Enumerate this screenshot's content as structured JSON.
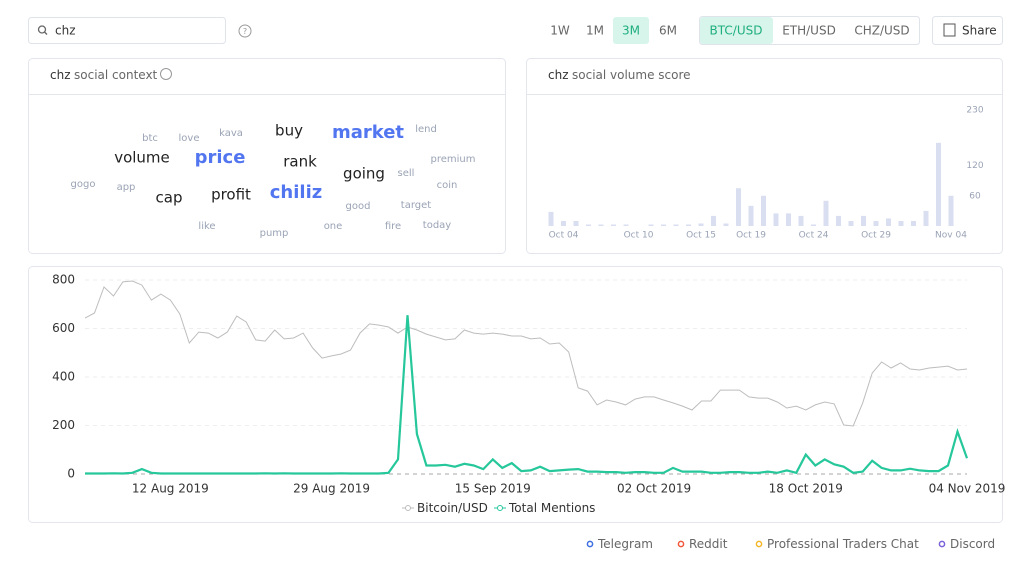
{
  "header": {
    "search": "chz",
    "periods": [
      "1W",
      "1M",
      "3M",
      "6M"
    ],
    "active_period": "3M",
    "pairs": [
      "BTC/USD",
      "ETH/USD",
      "CHZ/USD"
    ],
    "active_pair": "BTC/USD",
    "share": "Share"
  },
  "social_context": {
    "keyword": "chz",
    "title": "social context",
    "words": [
      "btc",
      "love",
      "kava",
      "buy",
      "market",
      "lend",
      "volume",
      "price",
      "rank",
      "premium",
      "gogo",
      "app",
      "going",
      "sell",
      "coin",
      "cap",
      "profit",
      "chiliz",
      "good",
      "target",
      "like",
      "pump",
      "one",
      "fire",
      "today"
    ]
  },
  "chart_data": [
    {
      "type": "bar",
      "keyword": "chz",
      "title": "social volume score",
      "color": "#d9dff0",
      "categories": [
        null,
        "Oct 04",
        null,
        null,
        null,
        null,
        null,
        "Oct 10",
        null,
        null,
        null,
        null,
        "Oct 15",
        null,
        null,
        null,
        "Oct 19",
        null,
        null,
        null,
        null,
        "Oct 24",
        null,
        null,
        null,
        null,
        "Oct 29",
        null,
        null,
        null,
        null,
        null,
        "Nov 04"
      ],
      "values": [
        28,
        10,
        10,
        3,
        3,
        3,
        3,
        0,
        3,
        3,
        3,
        3,
        5,
        20,
        5,
        75,
        40,
        60,
        25,
        25,
        20,
        3,
        50,
        20,
        10,
        20,
        10,
        15,
        10,
        10,
        30,
        165,
        60
      ],
      "ylim": [
        0,
        250
      ],
      "yticks": [
        60,
        120,
        230
      ]
    },
    {
      "type": "line",
      "ylim": [
        0,
        800
      ],
      "yticks": [
        0,
        200,
        400,
        600,
        800
      ],
      "grid": true,
      "categories": [
        null,
        null,
        null,
        null,
        null,
        null,
        null,
        null,
        null,
        "12 Aug 2019",
        null,
        null,
        null,
        null,
        null,
        null,
        null,
        null,
        null,
        null,
        null,
        null,
        null,
        null,
        null,
        null,
        "29 Aug 2019",
        null,
        null,
        null,
        null,
        null,
        null,
        null,
        null,
        null,
        null,
        null,
        null,
        null,
        null,
        null,
        null,
        "15 Sep 2019",
        null,
        null,
        null,
        null,
        null,
        null,
        null,
        null,
        null,
        null,
        null,
        null,
        null,
        null,
        null,
        null,
        "02 Oct 2019",
        null,
        null,
        null,
        null,
        null,
        null,
        null,
        null,
        null,
        null,
        null,
        null,
        null,
        null,
        null,
        "18 Oct 2019",
        null,
        null,
        null,
        null,
        null,
        null,
        null,
        null,
        null,
        null,
        null,
        null,
        null,
        null,
        null,
        null,
        "04 Nov 2019"
      ],
      "series": [
        {
          "name": "Bitcoin/USD",
          "color": "#bdbdbd",
          "values": [
            643,
            664,
            771,
            734,
            792,
            796,
            779,
            717,
            742,
            717,
            660,
            540,
            585,
            581,
            561,
            585,
            651,
            627,
            553,
            548,
            594,
            557,
            561,
            581,
            520,
            478,
            487,
            495,
            511,
            581,
            619,
            614,
            606,
            581,
            606,
            594,
            577,
            565,
            553,
            557,
            594,
            581,
            577,
            581,
            577,
            569,
            569,
            557,
            561,
            536,
            540,
            503,
            355,
            342,
            285,
            305,
            297,
            285,
            309,
            318,
            318,
            305,
            293,
            280,
            264,
            301,
            301,
            346,
            346,
            346,
            318,
            313,
            313,
            297,
            272,
            280,
            264,
            285,
            297,
            289,
            202,
            198,
            293,
            416,
            462,
            437,
            458,
            433,
            429,
            437,
            441,
            445,
            429,
            433
          ]
        },
        {
          "name": "Total Mentions",
          "color": "#26c79b",
          "values": [
            2,
            2,
            2,
            3,
            2,
            5,
            20,
            5,
            2,
            2,
            2,
            2,
            2,
            2,
            2,
            2,
            2,
            2,
            2,
            3,
            2,
            3,
            2,
            2,
            2,
            2,
            2,
            3,
            2,
            2,
            2,
            2,
            5,
            60,
            655,
            165,
            35,
            35,
            38,
            30,
            42,
            35,
            20,
            60,
            25,
            45,
            12,
            15,
            30,
            12,
            15,
            18,
            20,
            10,
            10,
            8,
            8,
            5,
            8,
            8,
            5,
            5,
            25,
            10,
            10,
            10,
            5,
            5,
            8,
            8,
            5,
            5,
            10,
            5,
            15,
            5,
            80,
            35,
            60,
            40,
            30,
            5,
            10,
            55,
            25,
            15,
            15,
            22,
            15,
            12,
            12,
            35,
            175,
            65
          ]
        }
      ]
    }
  ],
  "sources": [
    {
      "name": "Telegram",
      "color": "#3d6fe0"
    },
    {
      "name": "Reddit",
      "color": "#f0593b"
    },
    {
      "name": "Professional Traders Chat",
      "color": "#f4b728"
    },
    {
      "name": "Discord",
      "color": "#7b62d9"
    }
  ]
}
